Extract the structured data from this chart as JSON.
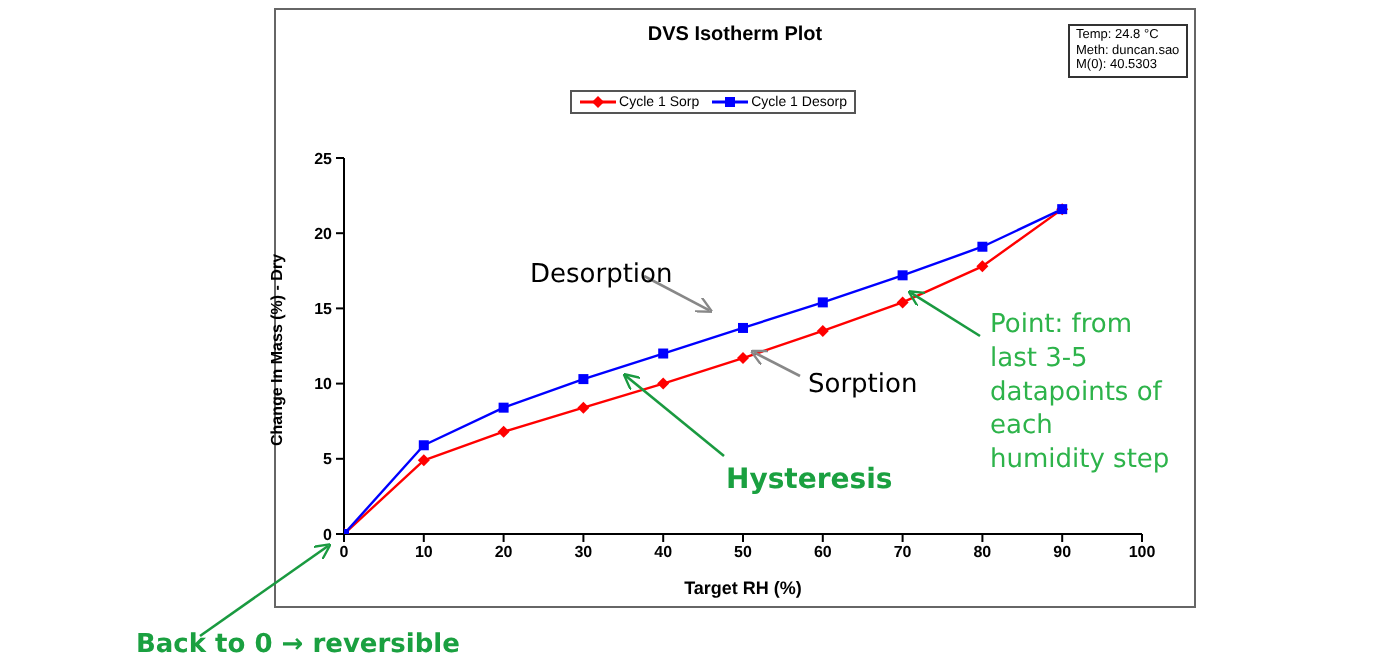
{
  "chart_data": {
    "type": "line",
    "title": "DVS Isotherm Plot",
    "xlabel": "Target RH (%)",
    "ylabel": "Change In Mass (%) - Dry",
    "x": [
      0,
      10,
      20,
      30,
      40,
      50,
      60,
      70,
      80,
      90
    ],
    "series": [
      {
        "name": "Cycle 1 Sorp",
        "color": "#ff0000",
        "marker": "diamond",
        "values": [
          0,
          4.9,
          6.8,
          8.4,
          10.0,
          11.7,
          13.5,
          15.4,
          17.8,
          21.6
        ]
      },
      {
        "name": "Cycle 1 Desorp",
        "color": "#0000ff",
        "marker": "square",
        "values": [
          0,
          5.9,
          8.4,
          10.3,
          12.0,
          13.7,
          15.4,
          17.2,
          19.1,
          21.6
        ]
      }
    ],
    "xlim": [
      0,
      100
    ],
    "xticks": [
      0,
      10,
      20,
      30,
      40,
      50,
      60,
      70,
      80,
      90,
      100
    ],
    "ylim": [
      0,
      25
    ],
    "yticks": [
      0,
      5,
      10,
      15,
      20,
      25
    ],
    "legend": "top",
    "grid": false,
    "annotations": [
      {
        "text": "Desorption",
        "x": 48,
        "y": 13.4
      },
      {
        "text": "Sorption",
        "x": 50,
        "y": 11.7
      },
      "Hysteresis",
      {
        "text": "Point: from last 3-5 datapoints of each humidity step",
        "x": 70,
        "y": 15.4
      },
      "Back to 0 → reversible",
      "Temp: 24.8 °C",
      "Meth: duncan.sao",
      "M(0): 40.5303"
    ]
  }
}
